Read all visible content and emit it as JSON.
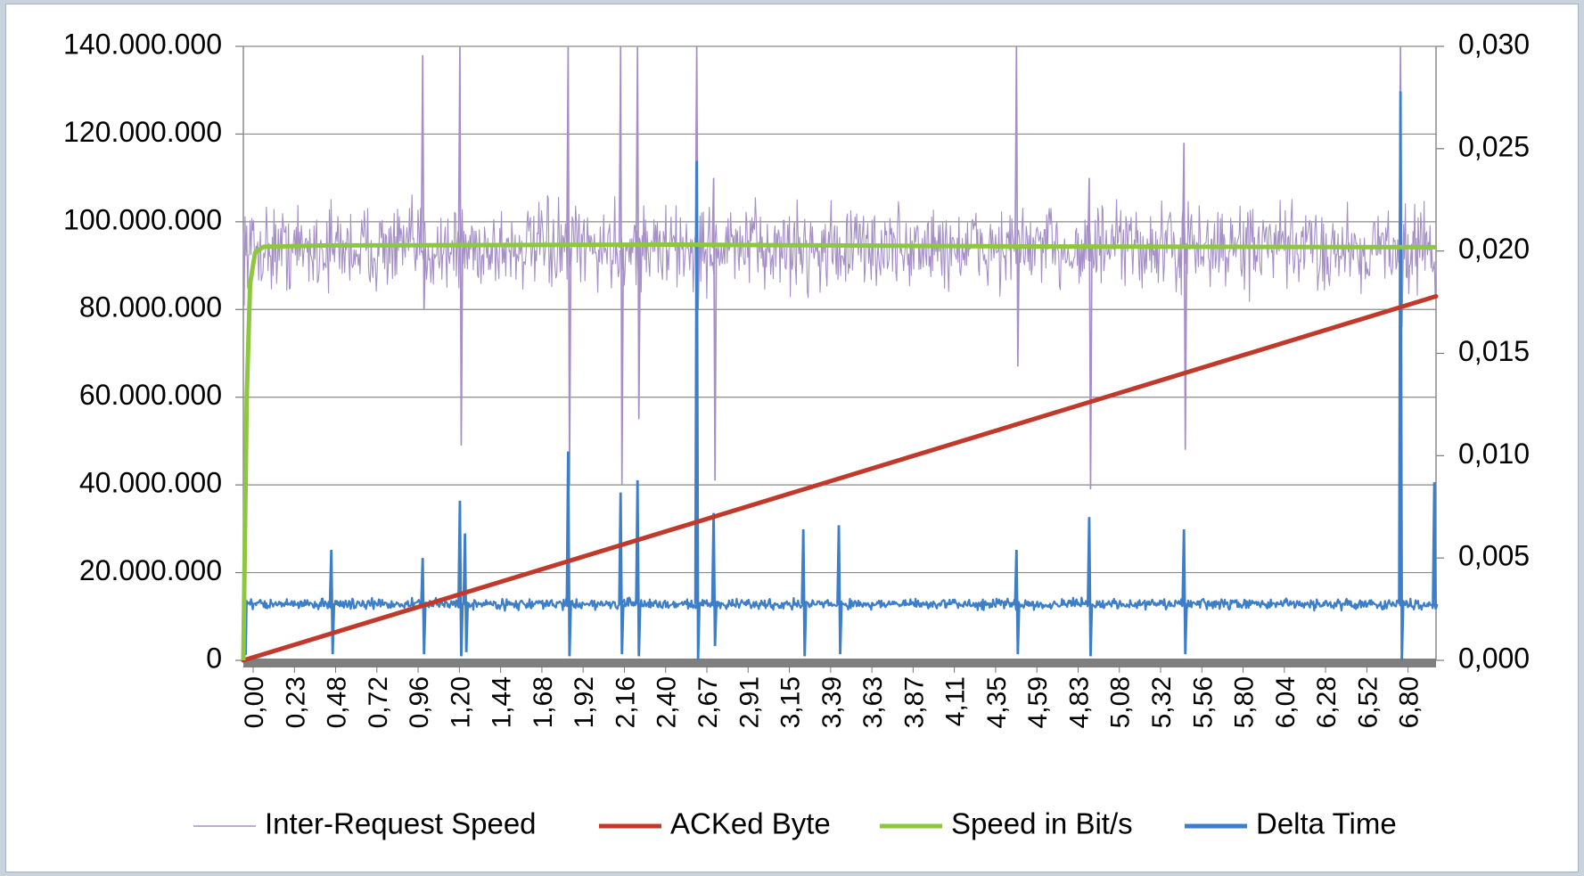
{
  "chart_data": {
    "type": "line",
    "title": "",
    "xlabel": "",
    "ylabel": "",
    "y_left": {
      "range": [
        0,
        140000000
      ],
      "ticks": [
        "0",
        "20.000.000",
        "40.000.000",
        "60.000.000",
        "80.000.000",
        "100.000.000",
        "120.000.000",
        "140.000.000"
      ]
    },
    "y_right": {
      "range": [
        0,
        0.03
      ],
      "ticks": [
        "0,000",
        "0,005",
        "0,010",
        "0,015",
        "0,020",
        "0,025",
        "0,030"
      ]
    },
    "x_range": [
      0,
      7.05
    ],
    "x_tick_labels": [
      "0,00",
      "0,23",
      "0,48",
      "0,72",
      "0,96",
      "1,20",
      "1,44",
      "1,68",
      "1,92",
      "2,16",
      "2,40",
      "2,67",
      "2,91",
      "3,15",
      "3,39",
      "3,63",
      "3,87",
      "4,11",
      "4,35",
      "4,59",
      "4,83",
      "5,08",
      "5,32",
      "5,56",
      "5,80",
      "6,04",
      "6,28",
      "6,52",
      "6,80"
    ],
    "grid": "horizontal",
    "legend_position": "bottom",
    "series": [
      {
        "name": "Inter-Request Speed",
        "axis": "left",
        "color": "#a58fc6",
        "baseline": 94000000,
        "noise_range": [
          80000000,
          108000000
        ],
        "spikes": [
          {
            "x": 1.06,
            "high": 138000000,
            "low": 80000000
          },
          {
            "x": 1.28,
            "high": 140000000,
            "low": 49000000
          },
          {
            "x": 1.92,
            "high": 140000000,
            "low": 40000000
          },
          {
            "x": 2.23,
            "high": 140000000,
            "low": 40000000
          },
          {
            "x": 2.33,
            "high": 140000000,
            "low": 55000000
          },
          {
            "x": 2.68,
            "high": 140000000,
            "low": 80000000
          },
          {
            "x": 2.78,
            "high": 110000000,
            "low": 41000000
          },
          {
            "x": 4.57,
            "high": 140000000,
            "low": 67000000
          },
          {
            "x": 5.0,
            "high": 110000000,
            "low": 39000000
          },
          {
            "x": 5.56,
            "high": 118000000,
            "low": 48000000
          },
          {
            "x": 6.84,
            "high": 140000000,
            "low": 76000000
          }
        ]
      },
      {
        "name": "ACKed Byte",
        "axis": "left",
        "color": "#c0392b",
        "x": [
          0.0,
          7.05
        ],
        "y": [
          0,
          83000000
        ]
      },
      {
        "name": "Speed in Bit/s",
        "axis": "left",
        "color": "#8dc63f",
        "x": [
          0.0,
          0.02,
          0.04,
          0.07,
          0.12,
          0.5,
          2.5,
          4.5,
          7.05
        ],
        "y": [
          0,
          60000000,
          86000000,
          93000000,
          94300000,
          94600000,
          94800000,
          94400000,
          94200000
        ]
      },
      {
        "name": "Delta Time",
        "axis": "right",
        "color": "#3d7ec9",
        "baseline": 0.00275,
        "noise_range": [
          0.0024,
          0.0031
        ],
        "spikes": [
          {
            "x": 0.52,
            "high": 0.0054,
            "low": 0.0003
          },
          {
            "x": 1.06,
            "high": 0.005,
            "low": 0.0003
          },
          {
            "x": 1.28,
            "high": 0.0078,
            "low": 0.0002
          },
          {
            "x": 1.31,
            "high": 0.0062,
            "low": 0.0004
          },
          {
            "x": 1.92,
            "high": 0.0102,
            "low": 0.0002
          },
          {
            "x": 2.23,
            "high": 0.0082,
            "low": 0.0003
          },
          {
            "x": 2.33,
            "high": 0.0088,
            "low": 0.0002
          },
          {
            "x": 2.68,
            "high": 0.0244,
            "low": 0.0
          },
          {
            "x": 2.78,
            "high": 0.0072,
            "low": 0.0007
          },
          {
            "x": 3.31,
            "high": 0.0064,
            "low": 0.0002
          },
          {
            "x": 3.52,
            "high": 0.0066,
            "low": 0.0003
          },
          {
            "x": 4.57,
            "high": 0.0054,
            "low": 0.0003
          },
          {
            "x": 5.0,
            "high": 0.007,
            "low": 0.0002
          },
          {
            "x": 5.56,
            "high": 0.0064,
            "low": 0.0003
          },
          {
            "x": 6.84,
            "high": 0.0278,
            "low": 0.0
          },
          {
            "x": 7.04,
            "high": 0.0087,
            "low": 0.0025
          }
        ]
      }
    ]
  }
}
